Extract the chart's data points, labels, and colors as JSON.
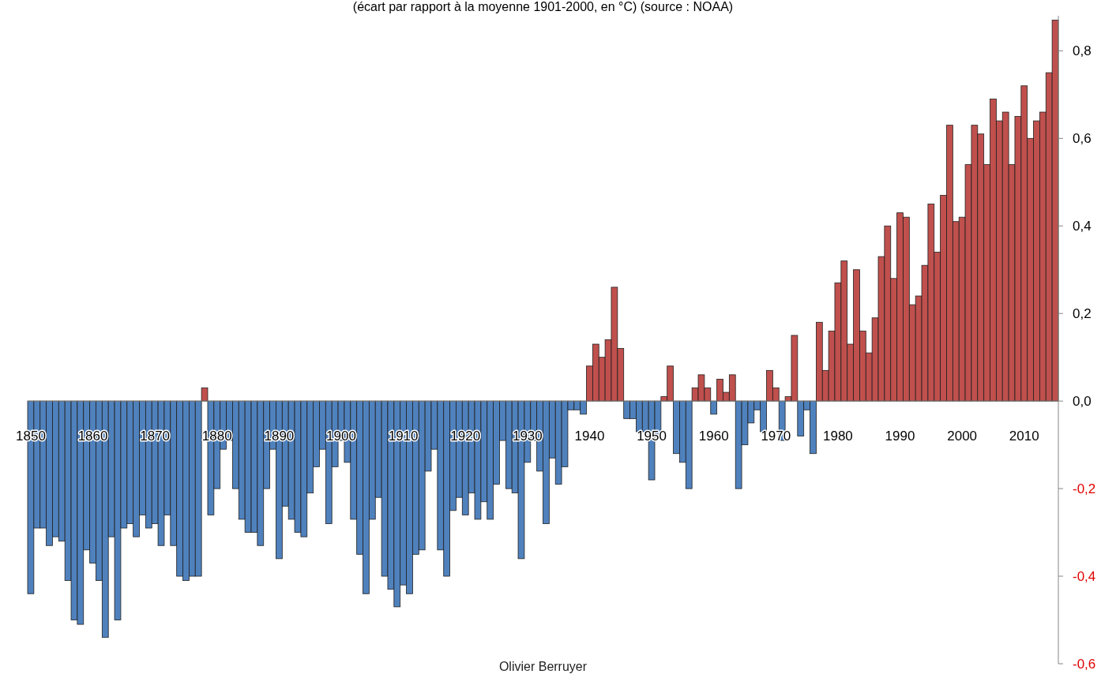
{
  "chart_data": {
    "type": "bar",
    "subtitle": "(écart par rapport à la moyenne 1901-2000, en °C) (source : NOAA)",
    "annotations": [
      "Olivier Berruyer"
    ],
    "categories": [
      "1850",
      null,
      null,
      null,
      null,
      null,
      null,
      null,
      null,
      null,
      "1860",
      null,
      null,
      null,
      null,
      null,
      null,
      null,
      null,
      null,
      "1870",
      null,
      null,
      null,
      null,
      null,
      null,
      null,
      null,
      null,
      "1880",
      null,
      null,
      null,
      null,
      null,
      null,
      null,
      null,
      null,
      "1890",
      null,
      null,
      null,
      null,
      null,
      null,
      null,
      null,
      null,
      "1900",
      null,
      null,
      null,
      null,
      null,
      null,
      null,
      null,
      null,
      "1910",
      null,
      null,
      null,
      null,
      null,
      null,
      null,
      null,
      null,
      "1920",
      null,
      null,
      null,
      null,
      null,
      null,
      null,
      null,
      null,
      "1930",
      null,
      null,
      null,
      null,
      null,
      null,
      null,
      null,
      null,
      "1940",
      null,
      null,
      null,
      null,
      null,
      null,
      null,
      null,
      null,
      "1950",
      null,
      null,
      null,
      null,
      null,
      null,
      null,
      null,
      null,
      "1960",
      null,
      null,
      null,
      null,
      null,
      null,
      null,
      null,
      null,
      "1970",
      null,
      null,
      null,
      null,
      null,
      null,
      null,
      null,
      null,
      "1980",
      null,
      null,
      null,
      null,
      null,
      null,
      null,
      null,
      null,
      "1990",
      null,
      null,
      null,
      null,
      null,
      null,
      null,
      null,
      null,
      "2000",
      null,
      null,
      null,
      null,
      null,
      null,
      null,
      null,
      null,
      "2010",
      null,
      null,
      null,
      null,
      null
    ],
    "values": [
      -0.44,
      -0.29,
      -0.29,
      -0.33,
      -0.31,
      -0.32,
      -0.41,
      -0.5,
      -0.51,
      -0.34,
      -0.37,
      -0.41,
      -0.54,
      -0.31,
      -0.5,
      -0.29,
      -0.28,
      -0.31,
      -0.26,
      -0.29,
      -0.28,
      -0.33,
      -0.26,
      -0.33,
      -0.4,
      -0.41,
      -0.4,
      -0.4,
      0.03,
      -0.26,
      -0.2,
      -0.11,
      -0.09,
      -0.2,
      -0.27,
      -0.3,
      -0.3,
      -0.33,
      -0.2,
      -0.11,
      -0.36,
      -0.24,
      -0.27,
      -0.3,
      -0.31,
      -0.21,
      -0.15,
      -0.11,
      -0.28,
      -0.15,
      -0.09,
      -0.14,
      -0.27,
      -0.35,
      -0.44,
      -0.27,
      -0.22,
      -0.4,
      -0.43,
      -0.47,
      -0.42,
      -0.44,
      -0.35,
      -0.34,
      -0.16,
      -0.11,
      -0.34,
      -0.4,
      -0.25,
      -0.22,
      -0.26,
      -0.21,
      -0.27,
      -0.23,
      -0.27,
      -0.19,
      -0.09,
      -0.2,
      -0.21,
      -0.36,
      -0.14,
      -0.09,
      -0.16,
      -0.28,
      -0.13,
      -0.19,
      -0.15,
      -0.02,
      -0.02,
      -0.03,
      0.08,
      0.13,
      0.1,
      0.14,
      0.26,
      0.12,
      -0.04,
      -0.04,
      -0.07,
      -0.07,
      -0.18,
      -0.08,
      0.01,
      0.08,
      -0.12,
      -0.14,
      -0.2,
      0.03,
      0.06,
      0.03,
      -0.03,
      0.05,
      0.02,
      0.06,
      -0.2,
      -0.1,
      -0.05,
      -0.02,
      -0.07,
      0.07,
      0.03,
      -0.09,
      0.01,
      0.15,
      -0.08,
      -0.02,
      -0.12,
      0.18,
      0.07,
      0.16,
      0.27,
      0.32,
      0.13,
      0.3,
      0.16,
      0.11,
      0.19,
      0.33,
      0.4,
      0.28,
      0.43,
      0.42,
      0.22,
      0.24,
      0.31,
      0.45,
      0.34,
      0.47,
      0.63,
      0.41,
      0.42,
      0.54,
      0.63,
      0.61,
      0.54,
      0.69,
      0.64,
      0.66,
      0.54,
      0.65,
      0.72,
      0.6,
      0.64,
      0.66,
      0.75,
      0.87
    ],
    "colors": [
      "#4f81bd",
      "#4f81bd",
      "#4f81bd",
      "#4f81bd",
      "#4f81bd",
      "#4f81bd",
      "#4f81bd",
      "#4f81bd",
      "#4f81bd",
      "#4f81bd",
      "#4f81bd",
      "#4f81bd",
      "#4f81bd",
      "#4f81bd",
      "#4f81bd",
      "#4f81bd",
      "#4f81bd",
      "#4f81bd",
      "#4f81bd",
      "#4f81bd",
      "#4f81bd",
      "#4f81bd",
      "#4f81bd",
      "#4f81bd",
      "#4f81bd",
      "#4f81bd",
      "#4f81bd",
      "#4f81bd",
      "#c0504d",
      "#4f81bd",
      "#4f81bd",
      "#4f81bd",
      "#4f81bd",
      "#4f81bd",
      "#4f81bd",
      "#4f81bd",
      "#4f81bd",
      "#4f81bd",
      "#4f81bd",
      "#4f81bd",
      "#4f81bd",
      "#4f81bd",
      "#4f81bd",
      "#4f81bd",
      "#4f81bd",
      "#4f81bd",
      "#4f81bd",
      "#4f81bd",
      "#4f81bd",
      "#4f81bd",
      "#4f81bd",
      "#4f81bd",
      "#4f81bd",
      "#4f81bd",
      "#4f81bd",
      "#4f81bd",
      "#4f81bd",
      "#4f81bd",
      "#4f81bd",
      "#4f81bd",
      "#4f81bd",
      "#4f81bd",
      "#4f81bd",
      "#4f81bd",
      "#4f81bd",
      "#4f81bd",
      "#4f81bd",
      "#4f81bd",
      "#4f81bd",
      "#4f81bd",
      "#4f81bd",
      "#4f81bd",
      "#4f81bd",
      "#4f81bd",
      "#4f81bd",
      "#4f81bd",
      "#4f81bd",
      "#4f81bd",
      "#4f81bd",
      "#4f81bd",
      "#4f81bd",
      "#4f81bd",
      "#4f81bd",
      "#4f81bd",
      "#4f81bd",
      "#4f81bd",
      "#4f81bd",
      "#4f81bd",
      "#4f81bd",
      "#4f81bd",
      "#c0504d",
      "#c0504d",
      "#c0504d",
      "#c0504d",
      "#c0504d",
      "#c0504d",
      "#4f81bd",
      "#4f81bd",
      "#4f81bd",
      "#4f81bd",
      "#4f81bd",
      "#4f81bd",
      "#c0504d",
      "#c0504d",
      "#4f81bd",
      "#4f81bd",
      "#4f81bd",
      "#c0504d",
      "#c0504d",
      "#c0504d",
      "#4f81bd",
      "#c0504d",
      "#c0504d",
      "#c0504d",
      "#4f81bd",
      "#4f81bd",
      "#4f81bd",
      "#4f81bd",
      "#4f81bd",
      "#c0504d",
      "#c0504d",
      "#4f81bd",
      "#c0504d",
      "#c0504d",
      "#4f81bd",
      "#4f81bd",
      "#4f81bd",
      "#c0504d",
      "#c0504d",
      "#c0504d",
      "#c0504d",
      "#c0504d",
      "#c0504d",
      "#c0504d",
      "#c0504d",
      "#c0504d",
      "#c0504d",
      "#c0504d",
      "#c0504d",
      "#c0504d",
      "#c0504d",
      "#c0504d",
      "#c0504d",
      "#c0504d",
      "#c0504d",
      "#c0504d",
      "#c0504d",
      "#c0504d",
      "#c0504d",
      "#c0504d",
      "#c0504d",
      "#c0504d",
      "#c0504d",
      "#c0504d",
      "#c0504d",
      "#c0504d",
      "#c0504d",
      "#c0504d",
      "#c0504d",
      "#c0504d",
      "#c0504d",
      "#c0504d",
      "#c0504d",
      "#c0504d",
      "#c0504d",
      "#c0504d"
    ],
    "ylim": [
      -0.6,
      0.88
    ],
    "yticks": [
      {
        "value": -0.6,
        "label": "-0,6"
      },
      {
        "value": -0.4,
        "label": "-0,4"
      },
      {
        "value": -0.2,
        "label": "-0,2"
      },
      {
        "value": 0,
        "label": "0,0"
      },
      {
        "value": 0.2,
        "label": "0,2"
      },
      {
        "value": 0.4,
        "label": "0,4"
      },
      {
        "value": 0.6,
        "label": "0,6"
      },
      {
        "value": 0.8,
        "label": "0,8"
      }
    ],
    "grid": false
  }
}
